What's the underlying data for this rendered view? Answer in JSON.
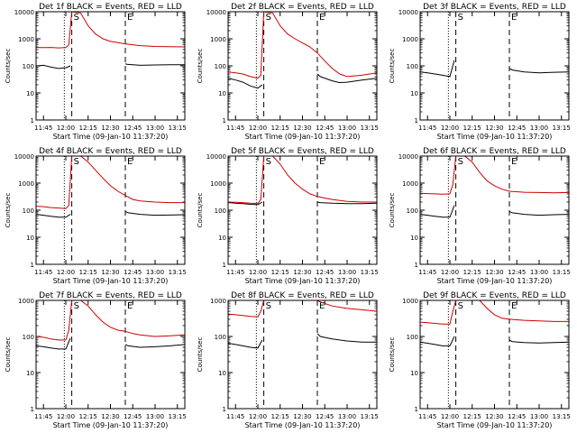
{
  "page": {
    "description_free": true,
    "colors": {
      "events": "#000000",
      "lld": "#cc0000",
      "axes": "#000000",
      "background": "#ffffff"
    }
  },
  "chart_data": [
    {
      "type": "line",
      "title": "Det 1f BLACK = Events, RED = LLD",
      "xlabel": "Start Time (09-Jan-10 11:37:20)",
      "ylabel": "Counts/sec",
      "x_ticks": [
        "11:45",
        "12:00",
        "12:15",
        "12:30",
        "12:45",
        "13:00",
        "13:15"
      ],
      "y_ticks": [
        "1",
        "10",
        "100",
        "1000",
        "10000"
      ],
      "y_scale": "log",
      "ylim": [
        1,
        10000
      ],
      "x_range_min": [
        0,
        100
      ],
      "vlines": [
        {
          "x": 19,
          "style": "dotted"
        },
        {
          "x": 24,
          "style": "dashed",
          "label": "S"
        },
        {
          "x": 60,
          "style": "dashed",
          "label": "E"
        }
      ],
      "series": [
        {
          "role": "events",
          "x": [
            0,
            5,
            10,
            15,
            20,
            23,
            24,
            28,
            59,
            60,
            61,
            65,
            70,
            80,
            90,
            100
          ],
          "y": [
            100,
            105,
            90,
            80,
            85,
            100,
            null,
            null,
            null,
            120,
            115,
            110,
            105,
            108,
            110,
            110
          ]
        },
        {
          "role": "lld",
          "x": [
            0,
            5,
            10,
            15,
            20,
            22,
            24,
            30,
            35,
            40,
            45,
            50,
            60,
            70,
            80,
            90,
            100
          ],
          "y": [
            480,
            470,
            480,
            460,
            470,
            600,
            12000,
            9000,
            3000,
            1500,
            1000,
            800,
            650,
            560,
            520,
            510,
            500
          ]
        }
      ]
    },
    {
      "type": "line",
      "title": "Det 2f BLACK = Events, RED = LLD",
      "xlabel": "Start Time (09-Jan-10 11:37:20)",
      "ylabel": "Counts/sec",
      "x_ticks": [
        "11:45",
        "12:00",
        "12:15",
        "12:30",
        "12:45",
        "13:00",
        "13:15"
      ],
      "y_ticks": [
        "1",
        "10",
        "100",
        "1000",
        "10000"
      ],
      "y_scale": "log",
      "ylim": [
        1,
        10000
      ],
      "x_range_min": [
        0,
        100
      ],
      "vlines": [
        {
          "x": 19,
          "style": "dotted"
        },
        {
          "x": 24,
          "style": "dashed",
          "label": "S"
        },
        {
          "x": 60,
          "style": "dashed",
          "label": "E"
        }
      ],
      "series": [
        {
          "role": "events",
          "x": [
            0,
            5,
            10,
            15,
            20,
            23,
            24,
            28,
            59,
            60,
            62,
            70,
            75,
            80,
            90,
            100
          ],
          "y": [
            35,
            30,
            25,
            18,
            15,
            20,
            null,
            null,
            null,
            50,
            40,
            28,
            24,
            25,
            30,
            35
          ]
        },
        {
          "role": "lld",
          "x": [
            0,
            5,
            10,
            15,
            20,
            22,
            24,
            30,
            35,
            40,
            45,
            50,
            55,
            60,
            65,
            70,
            75,
            80,
            90,
            100
          ],
          "y": [
            60,
            55,
            50,
            40,
            35,
            45,
            12000,
            9000,
            3000,
            1500,
            1000,
            700,
            500,
            300,
            150,
            80,
            50,
            40,
            45,
            55
          ]
        }
      ]
    },
    {
      "type": "line",
      "title": "Det 3f BLACK = Events, RED = LLD",
      "xlabel": "Start Time (09-Jan-10 11:37:20)",
      "ylabel": "Counts/sec",
      "x_ticks": [
        "11:45",
        "12:00",
        "12:15",
        "12:30",
        "12:45",
        "13:00",
        "13:15"
      ],
      "y_ticks": [
        "1",
        "10",
        "100",
        "1000",
        "10000"
      ],
      "y_scale": "log",
      "ylim": [
        1,
        10000
      ],
      "x_range_min": [
        0,
        100
      ],
      "vlines": [
        {
          "x": 19,
          "style": "dotted"
        },
        {
          "x": 24,
          "style": "dashed",
          "label": "S"
        },
        {
          "x": 60,
          "style": "dashed",
          "label": "E"
        }
      ],
      "series": [
        {
          "role": "events",
          "x": [
            0,
            5,
            10,
            15,
            20,
            23,
            24,
            28,
            59,
            60,
            62,
            70,
            80,
            90,
            100
          ],
          "y": [
            60,
            55,
            50,
            45,
            40,
            160,
            null,
            null,
            null,
            80,
            70,
            60,
            55,
            58,
            60
          ]
        }
      ]
    },
    {
      "type": "line",
      "title": "Det 4f BLACK = Events, RED = LLD",
      "xlabel": "Start Time (09-Jan-10 11:37:20)",
      "ylabel": "Counts/sec",
      "x_ticks": [
        "11:45",
        "12:00",
        "12:15",
        "12:30",
        "12:45",
        "13:00",
        "13:15"
      ],
      "y_ticks": [
        "1",
        "10",
        "100",
        "1000",
        "10000"
      ],
      "y_scale": "log",
      "ylim": [
        1,
        10000
      ],
      "x_range_min": [
        0,
        100
      ],
      "vlines": [
        {
          "x": 19,
          "style": "dotted"
        },
        {
          "x": 24,
          "style": "dashed",
          "label": "S"
        },
        {
          "x": 60,
          "style": "dashed",
          "label": "E"
        }
      ],
      "series": [
        {
          "role": "events",
          "x": [
            0,
            5,
            10,
            15,
            20,
            23,
            24,
            28,
            59,
            60,
            62,
            70,
            80,
            90,
            100
          ],
          "y": [
            70,
            65,
            60,
            55,
            55,
            70,
            null,
            null,
            null,
            90,
            80,
            70,
            65,
            66,
            68
          ]
        },
        {
          "role": "lld",
          "x": [
            0,
            5,
            10,
            15,
            20,
            22,
            24,
            30,
            35,
            40,
            45,
            50,
            55,
            60,
            65,
            70,
            80,
            90,
            100
          ],
          "y": [
            140,
            135,
            125,
            120,
            115,
            150,
            12000,
            11000,
            6000,
            3000,
            1500,
            800,
            500,
            350,
            250,
            220,
            200,
            190,
            190
          ]
        }
      ]
    },
    {
      "type": "line",
      "title": "Det 5f BLACK = Events, RED = LLD",
      "xlabel": "Start Time (09-Jan-10 11:37:20)",
      "ylabel": "Counts/sec",
      "x_ticks": [
        "11:45",
        "12:00",
        "12:15",
        "12:30",
        "12:45",
        "13:00",
        "13:15"
      ],
      "y_ticks": [
        "1",
        "10",
        "100",
        "1000",
        "10000"
      ],
      "y_scale": "log",
      "ylim": [
        1,
        10000
      ],
      "x_range_min": [
        0,
        100
      ],
      "vlines": [
        {
          "x": 19,
          "style": "dotted"
        },
        {
          "x": 24,
          "style": "dashed",
          "label": "S"
        },
        {
          "x": 60,
          "style": "dashed",
          "label": "E"
        }
      ],
      "series": [
        {
          "role": "events",
          "x": [
            0,
            5,
            10,
            15,
            20,
            23,
            24,
            28,
            59,
            60,
            62,
            70,
            80,
            90,
            100
          ],
          "y": [
            190,
            180,
            175,
            165,
            160,
            200,
            null,
            null,
            null,
            200,
            190,
            180,
            175,
            175,
            180
          ]
        },
        {
          "role": "lld",
          "x": [
            0,
            5,
            10,
            15,
            20,
            22,
            24,
            30,
            35,
            40,
            45,
            50,
            55,
            60,
            65,
            70,
            80,
            90,
            100
          ],
          "y": [
            200,
            195,
            190,
            180,
            175,
            250,
            12000,
            10000,
            5000,
            2000,
            1000,
            600,
            400,
            320,
            280,
            250,
            210,
            200,
            200
          ]
        }
      ]
    },
    {
      "type": "line",
      "title": "Det 6f BLACK = Events, RED = LLD",
      "xlabel": "Start Time (09-Jan-10 11:37:20)",
      "ylabel": "Counts/sec",
      "x_ticks": [
        "11:45",
        "12:00",
        "12:15",
        "12:30",
        "12:45",
        "13:00",
        "13:15"
      ],
      "y_ticks": [
        "1",
        "10",
        "100",
        "1000",
        "10000"
      ],
      "y_scale": "log",
      "ylim": [
        1,
        10000
      ],
      "x_range_min": [
        0,
        100
      ],
      "vlines": [
        {
          "x": 19,
          "style": "dotted"
        },
        {
          "x": 24,
          "style": "dashed",
          "label": "S"
        },
        {
          "x": 60,
          "style": "dashed",
          "label": "E"
        }
      ],
      "series": [
        {
          "role": "events",
          "x": [
            0,
            5,
            10,
            15,
            20,
            23,
            24,
            28,
            59,
            60,
            62,
            70,
            80,
            90,
            100
          ],
          "y": [
            70,
            65,
            60,
            55,
            55,
            150,
            null,
            null,
            null,
            90,
            80,
            70,
            65,
            68,
            70
          ]
        },
        {
          "role": "lld",
          "x": [
            0,
            5,
            10,
            15,
            20,
            22,
            24,
            30,
            35,
            40,
            45,
            50,
            55,
            60,
            70,
            80,
            90,
            100
          ],
          "y": [
            420,
            410,
            400,
            390,
            400,
            900,
            12000,
            11000,
            6000,
            2500,
            1200,
            800,
            600,
            500,
            460,
            450,
            440,
            450
          ]
        }
      ]
    },
    {
      "type": "line",
      "title": "Det 7f BLACK = Events, RED = LLD",
      "xlabel": "Start Time (09-Jan-10 11:37:20)",
      "ylabel": "Counts/sec",
      "x_ticks": [
        "11:45",
        "12:00",
        "12:15",
        "12:30",
        "12:45",
        "13:00",
        "13:15"
      ],
      "y_ticks": [
        "1",
        "10",
        "100",
        "1000"
      ],
      "y_scale": "log",
      "ylim": [
        1,
        1000
      ],
      "x_range_min": [
        0,
        100
      ],
      "vlines": [
        {
          "x": 19,
          "style": "dotted"
        },
        {
          "x": 24,
          "style": "dashed",
          "label": "S"
        },
        {
          "x": 60,
          "style": "dashed",
          "label": "E"
        }
      ],
      "series": [
        {
          "role": "events",
          "x": [
            0,
            5,
            10,
            15,
            20,
            23,
            24,
            28,
            59,
            60,
            62,
            70,
            80,
            90,
            100
          ],
          "y": [
            55,
            52,
            48,
            45,
            45,
            90,
            null,
            null,
            null,
            60,
            55,
            50,
            52,
            55,
            60
          ]
        },
        {
          "role": "lld",
          "x": [
            0,
            5,
            10,
            15,
            20,
            22,
            24,
            30,
            35,
            40,
            45,
            50,
            55,
            60,
            65,
            70,
            80,
            90,
            100
          ],
          "y": [
            100,
            95,
            85,
            80,
            80,
            150,
            1200,
            1100,
            700,
            400,
            250,
            180,
            150,
            140,
            120,
            110,
            100,
            105,
            110
          ]
        }
      ]
    },
    {
      "type": "line",
      "title": "Det 8f BLACK = Events, RED = LLD",
      "xlabel": "Start Time (09-Jan-10 11:37:20)",
      "ylabel": "Counts/sec",
      "x_ticks": [
        "11:45",
        "12:00",
        "12:15",
        "12:30",
        "12:45",
        "13:00",
        "13:15"
      ],
      "y_ticks": [
        "1",
        "10",
        "100",
        "1000"
      ],
      "y_scale": "log",
      "ylim": [
        1,
        1000
      ],
      "x_range_min": [
        0,
        100
      ],
      "vlines": [
        {
          "x": 19,
          "style": "dotted"
        },
        {
          "x": 24,
          "style": "dashed",
          "label": "S"
        },
        {
          "x": 60,
          "style": "dashed",
          "label": "E"
        }
      ],
      "series": [
        {
          "role": "events",
          "x": [
            0,
            5,
            10,
            15,
            20,
            23,
            24,
            28,
            59,
            60,
            62,
            70,
            80,
            90,
            100
          ],
          "y": [
            65,
            60,
            55,
            50,
            48,
            80,
            null,
            null,
            null,
            120,
            100,
            85,
            75,
            70,
            70
          ]
        },
        {
          "role": "lld",
          "x": [
            0,
            5,
            10,
            15,
            20,
            22,
            24,
            30,
            59,
            60,
            62,
            70,
            80,
            90,
            100
          ],
          "y": [
            420,
            400,
            380,
            360,
            350,
            500,
            1200,
            1200,
            null,
            1100,
            900,
            700,
            600,
            550,
            500
          ]
        }
      ]
    },
    {
      "type": "line",
      "title": "Det 9f BLACK = Events, RED = LLD",
      "xlabel": "Start Time (09-Jan-10 11:37:20)",
      "ylabel": "Counts/sec",
      "x_ticks": [
        "11:45",
        "12:00",
        "12:15",
        "12:30",
        "12:45",
        "13:00",
        "13:15"
      ],
      "y_ticks": [
        "1",
        "10",
        "100",
        "1000"
      ],
      "y_scale": "log",
      "ylim": [
        1,
        1000
      ],
      "x_range_min": [
        0,
        100
      ],
      "vlines": [
        {
          "x": 19,
          "style": "dotted"
        },
        {
          "x": 24,
          "style": "dashed",
          "label": "S"
        },
        {
          "x": 60,
          "style": "dashed",
          "label": "E"
        }
      ],
      "series": [
        {
          "role": "events",
          "x": [
            0,
            5,
            10,
            15,
            20,
            23,
            24,
            28,
            59,
            60,
            62,
            70,
            80,
            90,
            100
          ],
          "y": [
            70,
            65,
            60,
            55,
            55,
            100,
            null,
            null,
            null,
            80,
            72,
            68,
            66,
            68,
            70
          ]
        },
        {
          "role": "lld",
          "x": [
            0,
            5,
            10,
            15,
            20,
            22,
            24,
            30,
            40,
            45,
            50,
            55,
            60,
            70,
            80,
            90,
            100
          ],
          "y": [
            250,
            240,
            230,
            220,
            220,
            500,
            1200,
            1200,
            1100,
            600,
            400,
            320,
            300,
            280,
            270,
            260,
            260
          ]
        }
      ]
    }
  ]
}
